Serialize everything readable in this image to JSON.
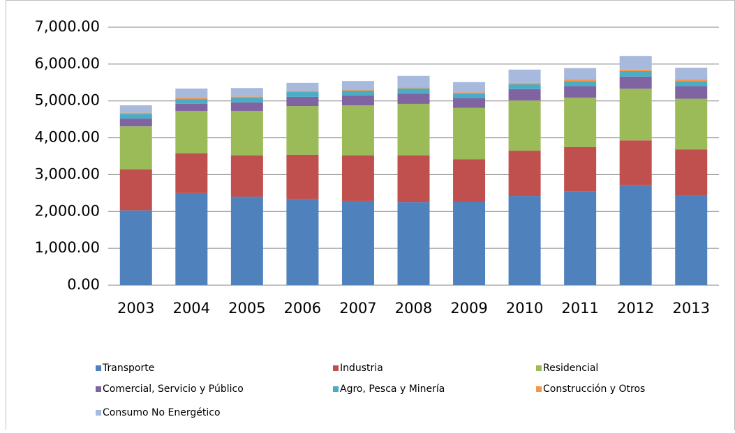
{
  "chart_data": {
    "type": "stacked_bar",
    "categories": [
      "2003",
      "2004",
      "2005",
      "2006",
      "2007",
      "2008",
      "2009",
      "2010",
      "2011",
      "2012",
      "2013"
    ],
    "series": [
      {
        "name": "Transporte",
        "color": "#4f81bd",
        "values": [
          2030,
          2500,
          2400,
          2330,
          2290,
          2250,
          2260,
          2420,
          2540,
          2710,
          2430
        ]
      },
      {
        "name": "Industria",
        "color": "#c0504d",
        "values": [
          1110,
          1075,
          1120,
          1210,
          1230,
          1270,
          1160,
          1230,
          1210,
          1220,
          1250
        ]
      },
      {
        "name": "Residencial",
        "color": "#9bbb59",
        "values": [
          1170,
          1155,
          1210,
          1320,
          1360,
          1400,
          1390,
          1360,
          1340,
          1400,
          1380
        ]
      },
      {
        "name": "Comercial, Servicio y Público",
        "color": "#8064a2",
        "values": [
          210,
          190,
          230,
          250,
          270,
          280,
          260,
          310,
          310,
          330,
          340
        ]
      },
      {
        "name": "Agro, Pesca y Minería",
        "color": "#4bacc6",
        "values": [
          130,
          130,
          130,
          130,
          130,
          140,
          130,
          130,
          140,
          150,
          140
        ]
      },
      {
        "name": "Construcción y Otros",
        "color": "#f79646",
        "values": [
          30,
          30,
          30,
          30,
          30,
          30,
          30,
          40,
          40,
          40,
          40
        ]
      },
      {
        "name": "Consumo No Energético",
        "color": "#a7b9dd",
        "values": [
          200,
          255,
          230,
          220,
          230,
          310,
          280,
          360,
          310,
          370,
          320
        ]
      }
    ],
    "ylim": [
      0,
      7000
    ],
    "yticks": [
      {
        "value": 0,
        "label": "0.00"
      },
      {
        "value": 1000,
        "label": "1,000.00"
      },
      {
        "value": 2000,
        "label": "2,000.00"
      },
      {
        "value": 3000,
        "label": "3,000.00"
      },
      {
        "value": 4000,
        "label": "4,000.00"
      },
      {
        "value": 5000,
        "label": "5,000.00"
      },
      {
        "value": 6000,
        "label": "6,000.00"
      },
      {
        "value": 7000,
        "label": "7,000.00"
      }
    ],
    "grid": true,
    "legend": "bottom"
  }
}
